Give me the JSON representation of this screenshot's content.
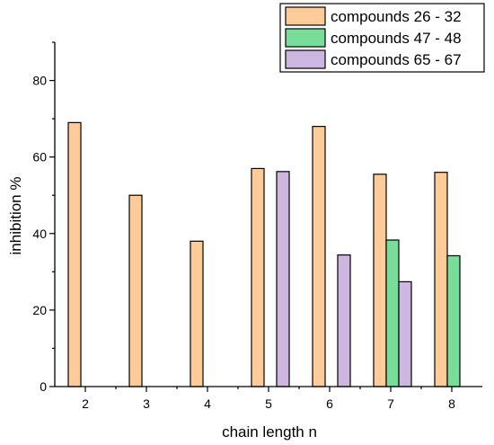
{
  "chart_data": {
    "type": "bar",
    "title": "",
    "xlabel": "chain length n",
    "ylabel": "inhibition %",
    "categories": [
      "2",
      "3",
      "4",
      "5",
      "6",
      "7",
      "8"
    ],
    "ylim": [
      0,
      90
    ],
    "yticks": [
      0,
      20,
      40,
      60,
      80
    ],
    "grid": false,
    "legend_position": "top-right",
    "series": [
      {
        "name": "compounds 26 - 32",
        "color": "#FFCC99",
        "values": [
          69,
          50,
          38,
          57,
          68,
          55.5,
          56
        ]
      },
      {
        "name": "compounds 47 - 48",
        "color": "#77DD99",
        "values": [
          null,
          null,
          null,
          null,
          null,
          38.3,
          34.2
        ]
      },
      {
        "name": "compounds 65 - 67",
        "color": "#CDB7E0",
        "values": [
          null,
          null,
          null,
          56.2,
          34.4,
          27.4,
          null
        ]
      }
    ]
  }
}
